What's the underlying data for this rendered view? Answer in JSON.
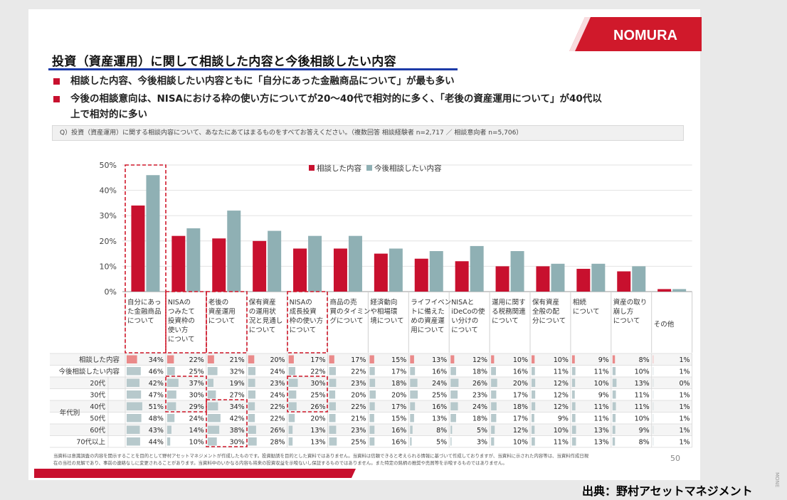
{
  "logo": {
    "text": "NOMURA",
    "color": "#d0192b"
  },
  "title": "投資（資産運用）に関して相談した内容と今後相談したい内容",
  "bullets": [
    [
      "相談した内容、今後相談したい内容ともに「自分にあった金融商品について」が最も多い"
    ],
    [
      "今後の相談意向は、NISAにおける枠の使い方についてが20～40代で相対的に多く、「老後の資産運用について」が40代以",
      "上で相対的に多い"
    ]
  ],
  "question": "Q）投資（資産運用）に関する相談内容について、あなたにあてはまるものをすべてお答えください。（複数回答 相談経験者 n=2,717 ／ 相談意向者 n=5,706）",
  "chart_data": {
    "type": "bar",
    "categories": [
      [
        "自分にあっ",
        "た金融商品",
        "について"
      ],
      [
        "NISAの",
        "つみたて",
        "投資枠の",
        "使い方",
        "について"
      ],
      [
        "老後の",
        "資産運用",
        "について"
      ],
      [
        "保有資産",
        "の運用状",
        "況と見通し",
        "について"
      ],
      [
        "NISAの",
        "成長投資",
        "枠の使い方",
        "について"
      ],
      [
        "商品の売",
        "買のタイミン",
        "グについて"
      ],
      [
        "経済動向",
        "や相場環",
        "境について"
      ],
      [
        "ライフイベン",
        "トに備えた",
        "めの資産運",
        "用について"
      ],
      [
        "NISAと",
        "iDeCoの使",
        "い分けの",
        "について"
      ],
      [
        "運用に関す",
        "る税務関連",
        "について"
      ],
      [
        "保有資産",
        "全般の配",
        "分について"
      ],
      [
        "相続",
        "について"
      ],
      [
        "資産の取り",
        "崩し方",
        "について"
      ],
      [
        "その他"
      ]
    ],
    "yticks": [
      "0%",
      "10%",
      "20%",
      "30%",
      "40%",
      "50%"
    ],
    "ylim": [
      0,
      50
    ],
    "series": [
      {
        "name": "相談した内容",
        "color": "#c8102e",
        "values": [
          34,
          22,
          21,
          20,
          17,
          17,
          15,
          13,
          12,
          10,
          10,
          9,
          8,
          1
        ]
      },
      {
        "name": "今後相談したい内容",
        "color": "#8fb0b4",
        "values": [
          46,
          25,
          32,
          24,
          22,
          22,
          17,
          16,
          18,
          16,
          11,
          11,
          10,
          1
        ]
      }
    ],
    "legend_position": "top",
    "table": {
      "group_label": "年代別",
      "rows": [
        {
          "label": "相談した内容",
          "fill": "#ea8a8a",
          "values": [
            34,
            22,
            21,
            20,
            17,
            17,
            15,
            13,
            12,
            10,
            10,
            9,
            8,
            1
          ]
        },
        {
          "label": "今後相談したい内容",
          "fill": "#b7c9cc",
          "values": [
            46,
            25,
            32,
            24,
            22,
            22,
            17,
            16,
            18,
            16,
            11,
            11,
            10,
            1
          ]
        },
        {
          "label": "20代",
          "fill": "#b7c9cc",
          "values": [
            42,
            37,
            19,
            23,
            30,
            23,
            18,
            24,
            26,
            20,
            12,
            10,
            13,
            0
          ]
        },
        {
          "label": "30代",
          "fill": "#b7c9cc",
          "values": [
            47,
            30,
            27,
            24,
            25,
            20,
            20,
            25,
            23,
            17,
            12,
            9,
            11,
            1
          ]
        },
        {
          "label": "40代",
          "fill": "#b7c9cc",
          "values": [
            51,
            29,
            34,
            22,
            26,
            22,
            17,
            16,
            24,
            18,
            12,
            11,
            11,
            1
          ]
        },
        {
          "label": "50代",
          "fill": "#b7c9cc",
          "values": [
            48,
            24,
            42,
            22,
            20,
            21,
            15,
            13,
            18,
            17,
            9,
            11,
            10,
            1
          ]
        },
        {
          "label": "60代",
          "fill": "#b7c9cc",
          "values": [
            43,
            14,
            38,
            26,
            13,
            23,
            16,
            8,
            5,
            12,
            10,
            13,
            9,
            1
          ]
        },
        {
          "label": "70代以上",
          "fill": "#b7c9cc",
          "values": [
            44,
            10,
            30,
            28,
            13,
            25,
            16,
            5,
            3,
            10,
            11,
            13,
            8,
            1
          ]
        }
      ]
    }
  },
  "footnote": [
    "当資料は意識調査の内容を開示することを目的として野村アセットマネジメントが作成したものです。投資勧誘を目的とした資料ではありません。当資料は信頼できると考えられる情報に基づいて作成しておりますが、当資料に示された内容等は、当資料作成日現",
    "在の当社の見解であり、事前の連絡なしに変更されることがあります。当資料中のいかなる内容も将来の投資収益を示唆ないし保証するものではありません。また特定の銘柄の推奨や売買等を示唆するものではありません。"
  ],
  "page_number": "50",
  "source": "出典：野村アセットマネジメント",
  "side_mark": "MONE"
}
